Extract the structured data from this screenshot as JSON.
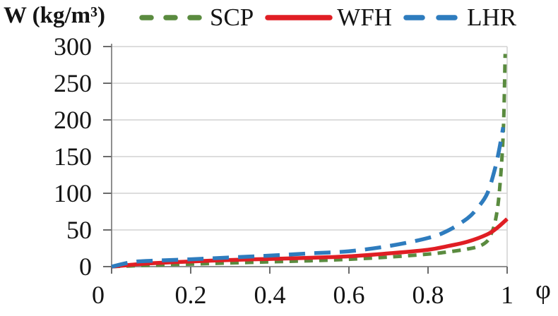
{
  "chart_data": {
    "type": "line",
    "title": "W (kg/m³)",
    "ylabel": "W (kg/m³)",
    "xlabel": "φ",
    "xlim": [
      0,
      1
    ],
    "ylim": [
      0,
      300
    ],
    "x_ticks": [
      0,
      0.2,
      0.4,
      0.6,
      0.8,
      1
    ],
    "x_tick_labels": [
      "0",
      "0.2",
      "0.4",
      "0.6",
      "0.8",
      "1"
    ],
    "y_ticks": [
      0,
      50,
      100,
      150,
      200,
      250,
      300
    ],
    "y_tick_labels": [
      "0",
      "50",
      "100",
      "150",
      "200",
      "250",
      "300"
    ],
    "grid": "horizontal",
    "legend_position": "top",
    "colors": {
      "background": "#ffffff",
      "gridline": "#d2d2d2",
      "axis": "#8f8f8f",
      "tick": "#6b6b6b",
      "text": "#141414"
    },
    "series": [
      {
        "name": "SCP",
        "color": "#5a8b3f",
        "line_style": "dashed-short",
        "width": 5,
        "dash": "12 9",
        "legend_dash": "13 21",
        "x": [
          0,
          0.05,
          0.1,
          0.2,
          0.3,
          0.4,
          0.5,
          0.6,
          0.7,
          0.8,
          0.85,
          0.9,
          0.93,
          0.95,
          0.96,
          0.97,
          0.98,
          0.99,
          0.995
        ],
        "y": [
          0,
          1,
          2,
          3.5,
          5,
          6.5,
          8,
          10,
          13,
          17,
          20,
          24,
          28,
          35,
          45,
          62,
          100,
          180,
          290
        ]
      },
      {
        "name": "WFH",
        "color": "#e01e24",
        "line_style": "solid",
        "width": 5.5,
        "dash": "",
        "legend_dash": "",
        "x": [
          0,
          0.05,
          0.1,
          0.2,
          0.3,
          0.4,
          0.5,
          0.6,
          0.7,
          0.8,
          0.85,
          0.9,
          0.95,
          0.975,
          1
        ],
        "y": [
          0,
          2.5,
          4.5,
          7,
          9,
          10.5,
          12,
          14,
          18,
          23,
          28,
          34,
          44,
          53,
          65
        ]
      },
      {
        "name": "LHR",
        "color": "#2e7cbe",
        "line_style": "dashed-long",
        "width": 5.5,
        "dash": "23 13",
        "legend_dash": "23 23",
        "x": [
          0,
          0.05,
          0.1,
          0.2,
          0.3,
          0.4,
          0.5,
          0.6,
          0.7,
          0.8,
          0.85,
          0.9,
          0.925,
          0.95,
          0.97,
          0.98,
          0.99
        ],
        "y": [
          0,
          6,
          8,
          10,
          12.5,
          15,
          18,
          21,
          28,
          39,
          49,
          66,
          80,
          100,
          135,
          160,
          190
        ]
      }
    ]
  }
}
